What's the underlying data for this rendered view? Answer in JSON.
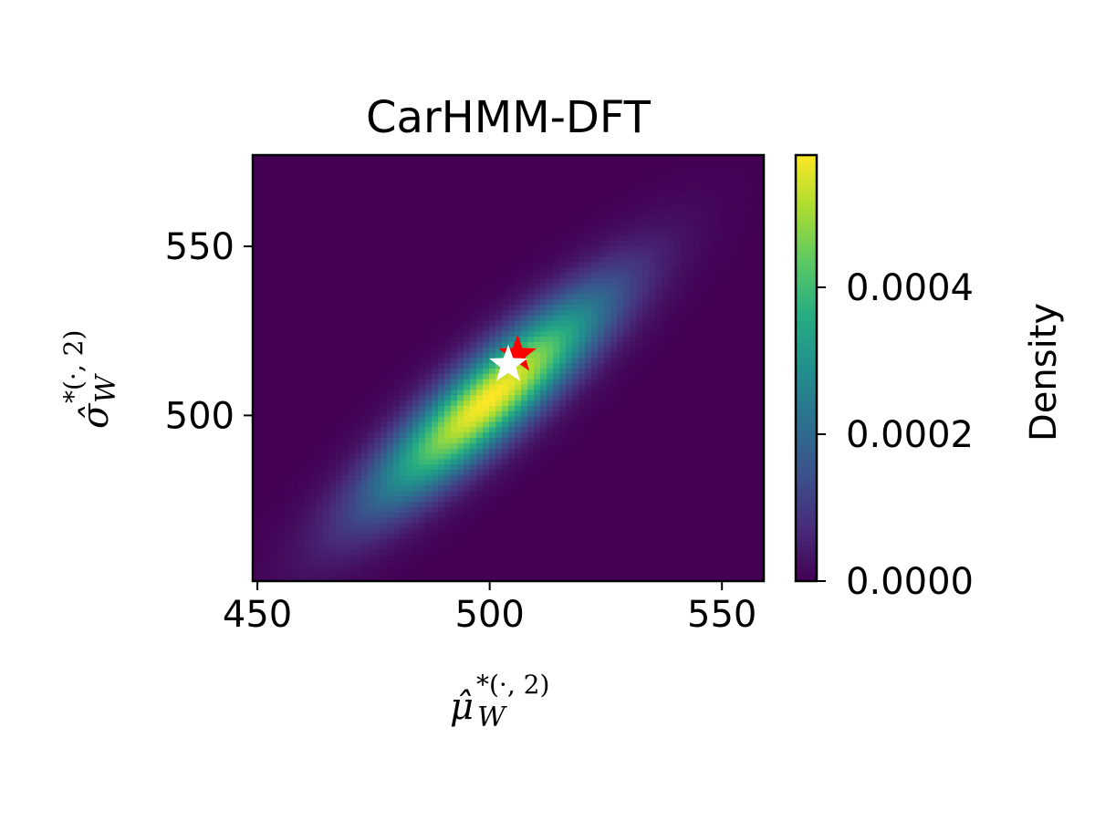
{
  "chart_data": {
    "type": "heatmap",
    "title": "CarHMM-DFT",
    "xlabel": "μ̂_W^{*(·,2)}",
    "ylabel": "σ̂_W^{*(·,2)}",
    "xlabel_parts": {
      "base": "μ̂",
      "sub": "W",
      "sup": "*(·, 2)"
    },
    "ylabel_parts": {
      "base": "σ̂",
      "sub": "W",
      "sup": "*(·, 2)"
    },
    "xlim": [
      449,
      559
    ],
    "ylim": [
      451,
      577
    ],
    "x_ticks": [
      450,
      500,
      550
    ],
    "y_ticks": [
      500,
      550
    ],
    "colorbar": {
      "label": "Density",
      "range": [
        0,
        0.00058
      ],
      "ticks": [
        "0.0000",
        "0.0002",
        "0.0004"
      ],
      "tick_values": [
        0,
        0.0002,
        0.0004
      ],
      "colormap": "viridis"
    },
    "density": {
      "mean": [
        500,
        505
      ],
      "sd_x": 17,
      "sd_y": 21,
      "correlation": 0.88,
      "peak": 0.00058
    },
    "markers": [
      {
        "name": "red-star",
        "x": 506,
        "y": 518,
        "color": "#ff0000"
      },
      {
        "name": "white-star",
        "x": 504,
        "y": 515,
        "color": "#ffffff"
      }
    ],
    "grid": false
  }
}
